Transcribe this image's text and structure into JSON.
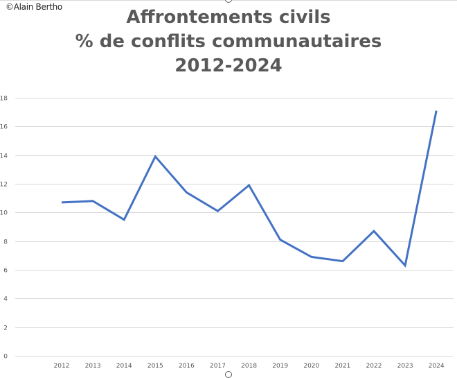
{
  "credit": "©Alain Bertho",
  "title_lines": [
    "Affrontements civils",
    "% de conflits communautaires",
    "2012-2024"
  ],
  "colors": {
    "line": "#4472C4",
    "grid": "#d9d9d9",
    "text": "#595959"
  },
  "chart_data": {
    "type": "line",
    "title": "Affrontements civils / % de conflits communautaires / 2012-2024",
    "xlabel": "",
    "ylabel": "",
    "categories": [
      "2012",
      "2013",
      "2014",
      "2015",
      "2016",
      "2017",
      "2018",
      "2019",
      "2020",
      "2021",
      "2022",
      "2023",
      "2024"
    ],
    "series": [
      {
        "name": "% de conflits communautaires",
        "values": [
          10.7,
          10.8,
          9.5,
          13.9,
          11.4,
          10.1,
          11.9,
          8.1,
          6.9,
          6.6,
          8.7,
          6.3,
          17.1
        ]
      }
    ],
    "ylim": [
      0,
      18
    ],
    "yticks": [
      0,
      2,
      4,
      6,
      8,
      10,
      12,
      14,
      16,
      18
    ],
    "grid": true,
    "legend": "none"
  }
}
